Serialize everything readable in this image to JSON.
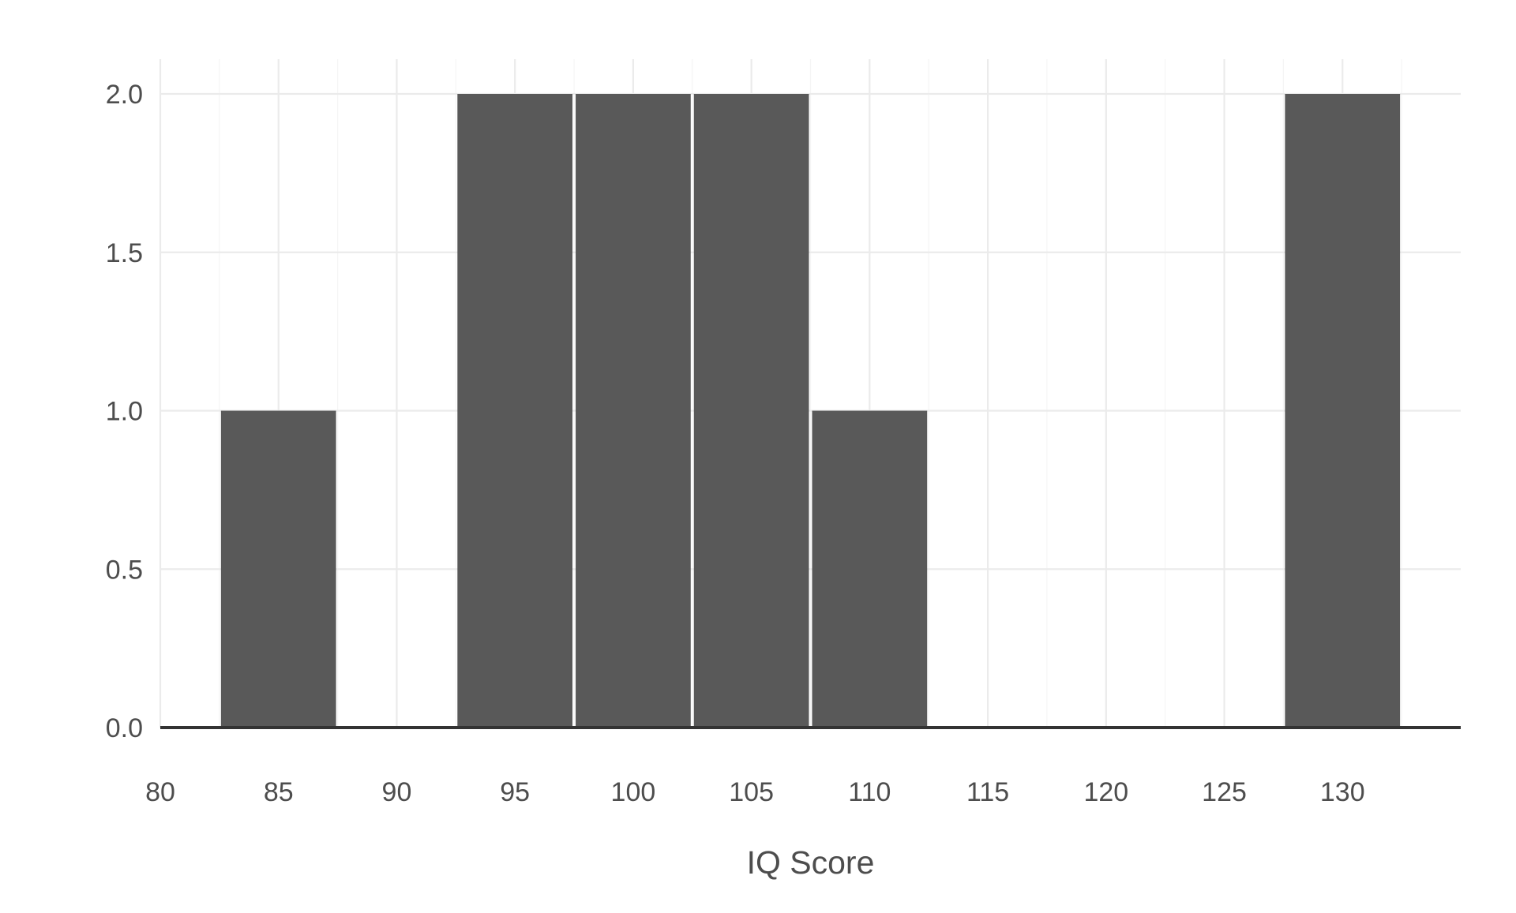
{
  "chart_data": {
    "type": "bar",
    "title": "",
    "xlabel": "IQ Score",
    "ylabel": "",
    "x_ticks": [
      "80",
      "85",
      "90",
      "95",
      "100",
      "105",
      "110",
      "115",
      "120",
      "125",
      "130"
    ],
    "y_ticks": [
      "0.0",
      "0.5",
      "1.0",
      "1.5",
      "2.0"
    ],
    "xlim": [
      80,
      135
    ],
    "ylim": [
      0,
      2.0
    ],
    "bin_width": 5,
    "bins": [
      {
        "center": 85,
        "count": 1
      },
      {
        "center": 95,
        "count": 2
      },
      {
        "center": 100,
        "count": 2
      },
      {
        "center": 105,
        "count": 2
      },
      {
        "center": 110,
        "count": 1
      },
      {
        "center": 130,
        "count": 2
      }
    ],
    "grid": true,
    "legend": "none",
    "colors": {
      "bar": "#595959",
      "grid": "#ebebeb",
      "baseline": "#333333",
      "text": "#4d4d4d"
    }
  }
}
